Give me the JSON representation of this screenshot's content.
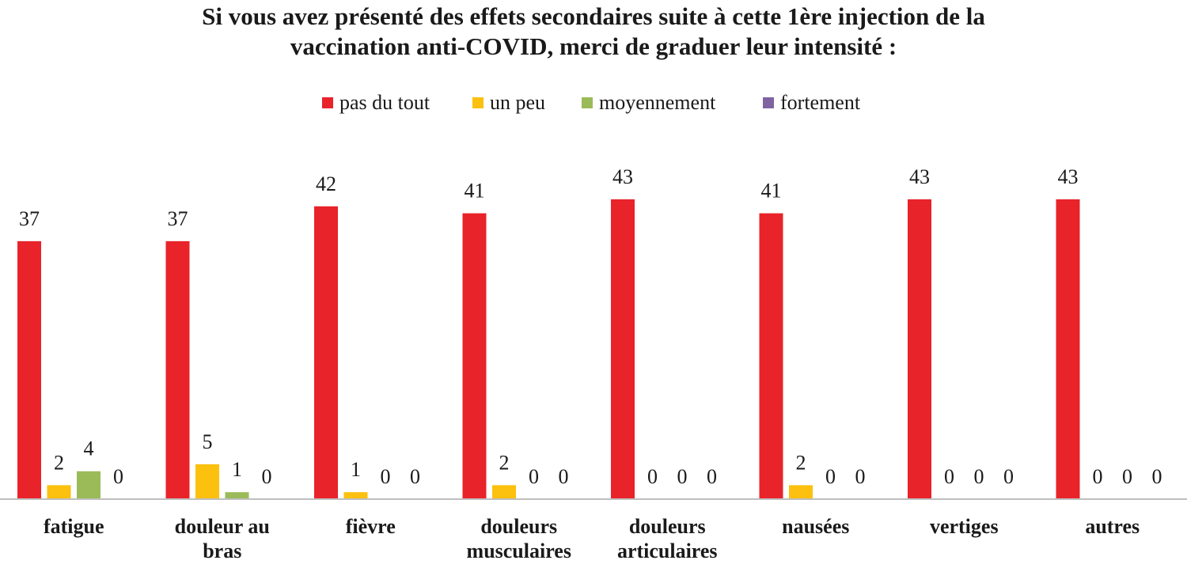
{
  "chart_data": {
    "type": "bar",
    "title": [
      "Si vous avez présenté des effets secondaires suite à cette 1ère injection de la",
      "vaccination anti-COVID, merci de graduer leur intensité :"
    ],
    "categories": [
      [
        "fatigue"
      ],
      [
        "douleur au",
        "bras"
      ],
      [
        "fièvre"
      ],
      [
        "douleurs",
        "musculaires"
      ],
      [
        "douleurs",
        "articulaires"
      ],
      [
        "nausées"
      ],
      [
        "vertiges"
      ],
      [
        "autres"
      ]
    ],
    "series": [
      {
        "name": "pas du tout",
        "color": "#e8232a",
        "values": [
          37,
          37,
          42,
          41,
          43,
          41,
          43,
          43
        ]
      },
      {
        "name": "un peu",
        "color": "#fcc00f",
        "values": [
          2,
          5,
          1,
          2,
          0,
          2,
          0,
          0
        ]
      },
      {
        "name": "moyennement",
        "color": "#9bbb59",
        "values": [
          4,
          1,
          0,
          0,
          0,
          0,
          0,
          0
        ]
      },
      {
        "name": "fortement",
        "color": "#8064a2",
        "values": [
          0,
          0,
          0,
          0,
          0,
          0,
          0,
          0
        ]
      }
    ],
    "xlabel": "",
    "ylabel": "",
    "ylim": [
      0,
      43
    ],
    "grid": false,
    "legend": "top-center"
  }
}
